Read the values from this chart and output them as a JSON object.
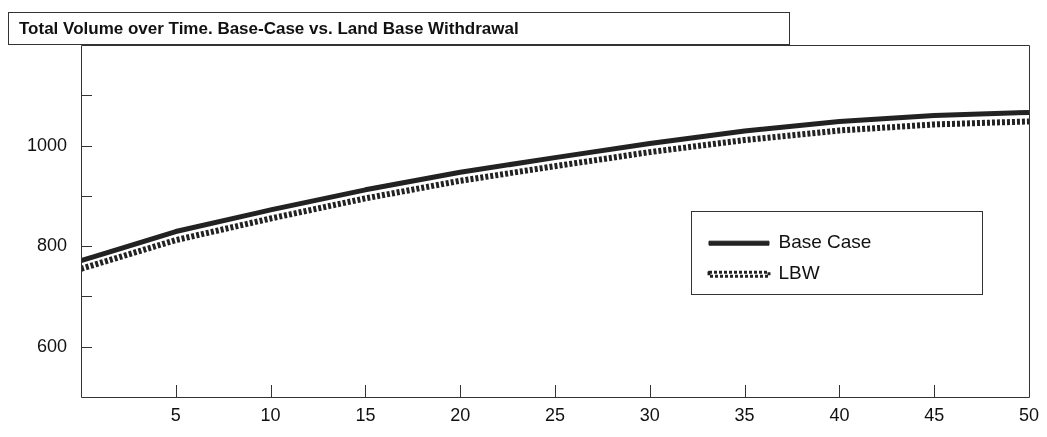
{
  "chart_data": {
    "type": "line",
    "title": "Total Volume over Time. Base-Case vs. Land Base Withdrawal",
    "x": [
      0,
      5,
      10,
      15,
      20,
      25,
      30,
      35,
      40,
      45,
      50
    ],
    "series": [
      {
        "name": "Base Case",
        "color": "#222222",
        "line_style": "solid",
        "values": [
          771,
          829,
          872,
          912,
          947,
          976,
          1004,
          1029,
          1048,
          1060,
          1066
        ]
      },
      {
        "name": "LBW",
        "color": "#222222",
        "line_style": "dotted",
        "values": [
          755,
          812,
          855,
          895,
          930,
          959,
          987,
          1011,
          1030,
          1042,
          1048
        ]
      }
    ],
    "xlim": [
      0,
      50
    ],
    "xticks": [
      5,
      10,
      15,
      20,
      25,
      30,
      35,
      40,
      45,
      50
    ],
    "ylim": [
      500,
      1200
    ],
    "yticks": [
      {
        "value": 600,
        "label": "600"
      },
      {
        "value": 700,
        "label": null
      },
      {
        "value": 800,
        "label": "800"
      },
      {
        "value": 900,
        "label": null
      },
      {
        "value": 1000,
        "label": "1000"
      },
      {
        "value": 1100,
        "label": null
      }
    ],
    "legend": "right",
    "marker": "none"
  }
}
